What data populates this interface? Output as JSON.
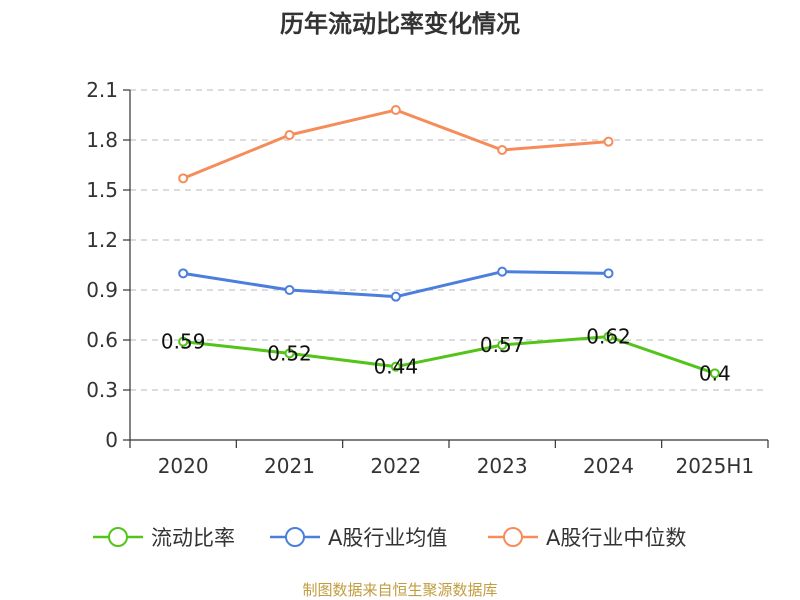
{
  "chart_data": {
    "type": "line",
    "title": "历年流动比率变化情况",
    "categories": [
      "2020",
      "2021",
      "2022",
      "2023",
      "2024",
      "2025H1"
    ],
    "ylim": [
      0,
      2.1
    ],
    "yticks": [
      "0",
      "0.3",
      "0.6",
      "0.9",
      "1.2",
      "1.5",
      "1.8",
      "2.1"
    ],
    "grid": true,
    "legend_position": "bottom",
    "series": [
      {
        "name": "流动比率",
        "color": "#52c41a",
        "values": [
          0.59,
          0.52,
          0.44,
          0.57,
          0.62,
          0.4
        ],
        "labels": [
          "0.59",
          "0.52",
          "0.44",
          "0.57",
          "0.62",
          "0.4"
        ]
      },
      {
        "name": "A股行业均值",
        "color": "#4a7fdc",
        "values": [
          1.0,
          0.9,
          0.86,
          1.01,
          1.0,
          null
        ]
      },
      {
        "name": "A股行业中位数",
        "color": "#f58c5a",
        "values": [
          1.57,
          1.83,
          1.98,
          1.74,
          1.79,
          null
        ]
      }
    ],
    "source": "制图数据来自恒生聚源数据库"
  }
}
